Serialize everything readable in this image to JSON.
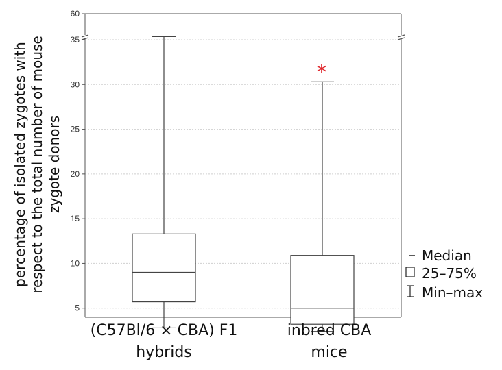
{
  "chart_data": {
    "type": "box",
    "ylabel_lines": [
      "percentage of isolated zygotes with",
      "respect to the total number of mouse",
      "zygote donors"
    ],
    "xlabel": "",
    "y_ticks": [
      5,
      10,
      15,
      20,
      25,
      30,
      35,
      60
    ],
    "y_axis_break": {
      "from": 35,
      "to": 60
    },
    "grid": true,
    "categories": [
      {
        "lines": [
          "(C57Bl/6 × CBA) F1",
          "hybrids"
        ]
      },
      {
        "lines": [
          "inbred CBA",
          "mice"
        ]
      }
    ],
    "boxes": [
      {
        "min": 2.8,
        "q1": 5.7,
        "median": 9.0,
        "q3": 13.3,
        "max": 38
      },
      {
        "min": 2.4,
        "q1": 3.2,
        "median": 5.0,
        "q3": 10.9,
        "max": 30.3,
        "significance_marker": "*"
      }
    ],
    "legend": {
      "position": "right",
      "items": [
        {
          "symbol": "dash",
          "label": "Median"
        },
        {
          "symbol": "box",
          "label": "25–75%"
        },
        {
          "symbol": "whisker",
          "label": "Min–max"
        }
      ]
    },
    "colors": {
      "box": "#444444",
      "grid": "#cfcfcf",
      "significance": "#e0282e"
    }
  }
}
